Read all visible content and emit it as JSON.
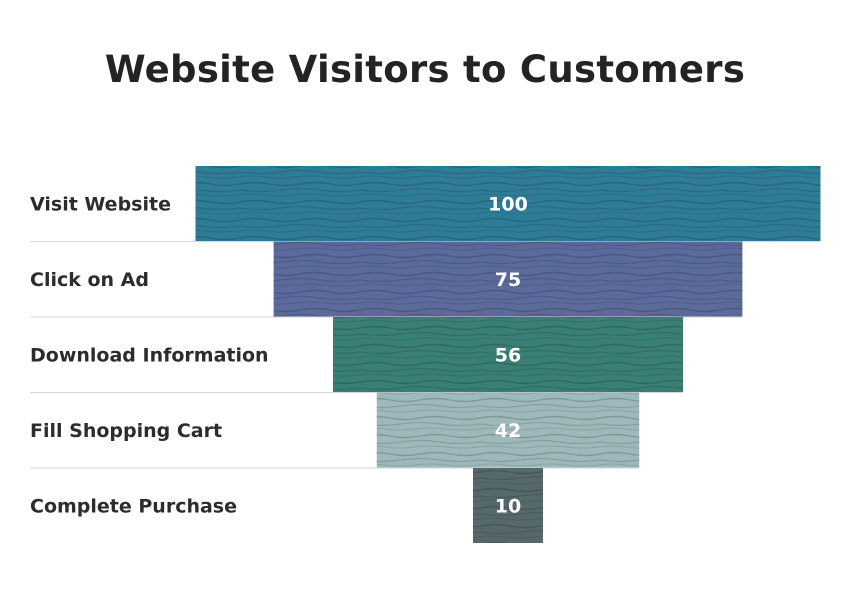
{
  "chart_data": {
    "type": "funnel",
    "title": "Website Visitors to Customers",
    "categories": [
      "Visit Website",
      "Click on Ad",
      "Download Information",
      "Fill Shopping Cart",
      "Complete Purchase"
    ],
    "values": [
      100,
      75,
      56,
      42,
      10
    ],
    "colors": [
      "#2f7c96",
      "#5a6a9b",
      "#3a7f76",
      "#9eb9bb",
      "#56696a"
    ],
    "separator_color": "#d6d6d6"
  }
}
